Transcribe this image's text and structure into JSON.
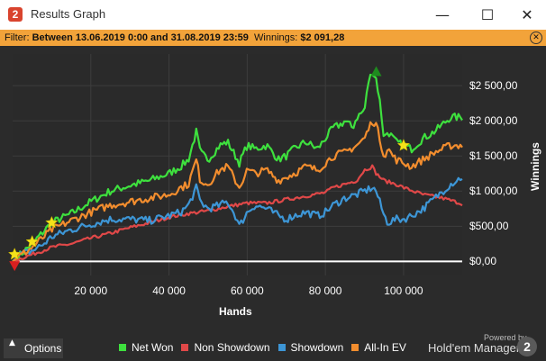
{
  "window": {
    "title": "Results Graph",
    "logo": "2",
    "controls": [
      "minimize-icon",
      "maximize-icon",
      "close-icon"
    ]
  },
  "filter": {
    "prefix": "Filter:",
    "range": "Between 13.06.2019 0:00 and 31.08.2019 23:59",
    "winnings_label": "Winnings:",
    "winnings_value": "$2 091,28"
  },
  "chart_data": {
    "type": "line",
    "xlabel": "Hands",
    "ylabel": "Winnings",
    "xlim": [
      0,
      115000
    ],
    "ylim": [
      -200,
      2950
    ],
    "x_ticks": [
      20000,
      40000,
      60000,
      80000,
      100000
    ],
    "x_tick_labels": [
      "20 000",
      "40 000",
      "60 000",
      "80 000",
      "100 000"
    ],
    "y_ticks": [
      0,
      500,
      1000,
      1500,
      2000,
      2500
    ],
    "y_tick_labels": [
      "$0,00",
      "$500,00",
      "$1 000,00",
      "$1 500,00",
      "$2 000,00",
      "$2 500,00"
    ],
    "grid": true,
    "legend_position": "bottom",
    "series": [
      {
        "name": "Net Won",
        "color": "#3ee03e",
        "x": [
          0,
          2000,
          5000,
          10000,
          15000,
          20000,
          25000,
          30000,
          35000,
          40000,
          43000,
          45000,
          47000,
          48000,
          50000,
          53000,
          55000,
          57000,
          58000,
          60000,
          62000,
          65000,
          68000,
          70000,
          72000,
          75000,
          78000,
          80000,
          82000,
          84000,
          85000,
          87000,
          88000,
          90000,
          91000,
          92000,
          93000,
          94000,
          95000,
          96000,
          98000,
          100000,
          102000,
          105000,
          108000,
          110000,
          112000,
          115000
        ],
        "y": [
          0,
          100,
          250,
          550,
          680,
          850,
          1000,
          1080,
          1150,
          1250,
          1350,
          1450,
          1850,
          1550,
          1450,
          1650,
          1700,
          1500,
          1400,
          1650,
          1600,
          1650,
          1450,
          1500,
          1600,
          1700,
          1600,
          1750,
          1900,
          1950,
          2000,
          1900,
          2050,
          2150,
          2550,
          2700,
          2600,
          2250,
          1750,
          1850,
          1700,
          1650,
          1600,
          1750,
          1850,
          1950,
          2050,
          2050
        ]
      },
      {
        "name": "Non Showdown",
        "color": "#e04848",
        "x": [
          0,
          5000,
          10000,
          15000,
          20000,
          25000,
          30000,
          35000,
          40000,
          45000,
          50000,
          55000,
          60000,
          65000,
          70000,
          75000,
          80000,
          82000,
          85000,
          88000,
          90000,
          92000,
          93000,
          95000,
          98000,
          100000,
          105000,
          110000,
          115000
        ],
        "y": [
          0,
          100,
          200,
          250,
          330,
          400,
          480,
          550,
          630,
          680,
          720,
          780,
          830,
          830,
          880,
          930,
          980,
          1050,
          1100,
          1150,
          1300,
          1350,
          1250,
          1150,
          1100,
          1050,
          950,
          900,
          820
        ]
      },
      {
        "name": "Showdown",
        "color": "#3d96d6",
        "x": [
          0,
          2000,
          5000,
          8000,
          10000,
          15000,
          20000,
          25000,
          30000,
          35000,
          40000,
          43000,
          45000,
          47000,
          48000,
          50000,
          53000,
          55000,
          57000,
          58000,
          60000,
          62000,
          65000,
          68000,
          70000,
          72000,
          75000,
          78000,
          80000,
          82000,
          85000,
          88000,
          90000,
          92000,
          93000,
          95000,
          96000,
          98000,
          100000,
          102000,
          105000,
          108000,
          110000,
          112000,
          115000
        ],
        "y": [
          0,
          100,
          150,
          250,
          350,
          450,
          530,
          600,
          600,
          580,
          650,
          700,
          800,
          1050,
          850,
          750,
          800,
          850,
          650,
          500,
          700,
          800,
          750,
          650,
          600,
          650,
          700,
          650,
          700,
          800,
          900,
          950,
          1000,
          1050,
          1000,
          650,
          550,
          600,
          600,
          650,
          750,
          900,
          1000,
          1100,
          1200
        ]
      },
      {
        "name": "All-In EV",
        "color": "#f28d2e",
        "x": [
          0,
          2000,
          5000,
          10000,
          15000,
          20000,
          25000,
          30000,
          35000,
          40000,
          43000,
          45000,
          47000,
          48000,
          50000,
          53000,
          55000,
          57000,
          58000,
          60000,
          62000,
          65000,
          68000,
          70000,
          72000,
          75000,
          78000,
          80000,
          82000,
          85000,
          88000,
          90000,
          92000,
          93000,
          95000,
          96000,
          98000,
          100000,
          102000,
          105000,
          108000,
          110000,
          112000,
          115000
        ],
        "y": [
          0,
          80,
          200,
          450,
          580,
          700,
          800,
          850,
          900,
          950,
          1050,
          1100,
          1450,
          1150,
          1100,
          1300,
          1350,
          1150,
          1050,
          1300,
          1250,
          1300,
          1150,
          1200,
          1250,
          1350,
          1300,
          1400,
          1500,
          1550,
          1650,
          1750,
          2000,
          1950,
          1500,
          1600,
          1450,
          1400,
          1350,
          1450,
          1550,
          1600,
          1650,
          1650
        ]
      }
    ],
    "markers": [
      {
        "kind": "star",
        "x": 500,
        "y": 100
      },
      {
        "kind": "star",
        "x": 5000,
        "y": 280
      },
      {
        "kind": "star",
        "x": 10000,
        "y": 550
      },
      {
        "kind": "star",
        "x": 100000,
        "y": 1650
      },
      {
        "kind": "peak",
        "x": 93000,
        "y": 2700
      },
      {
        "kind": "low",
        "x": 500,
        "y": -60
      }
    ]
  },
  "footer": {
    "options_label": "Options",
    "powered_by": "Powered by",
    "brand": "Hold'em Manager",
    "brand_badge": "2"
  }
}
